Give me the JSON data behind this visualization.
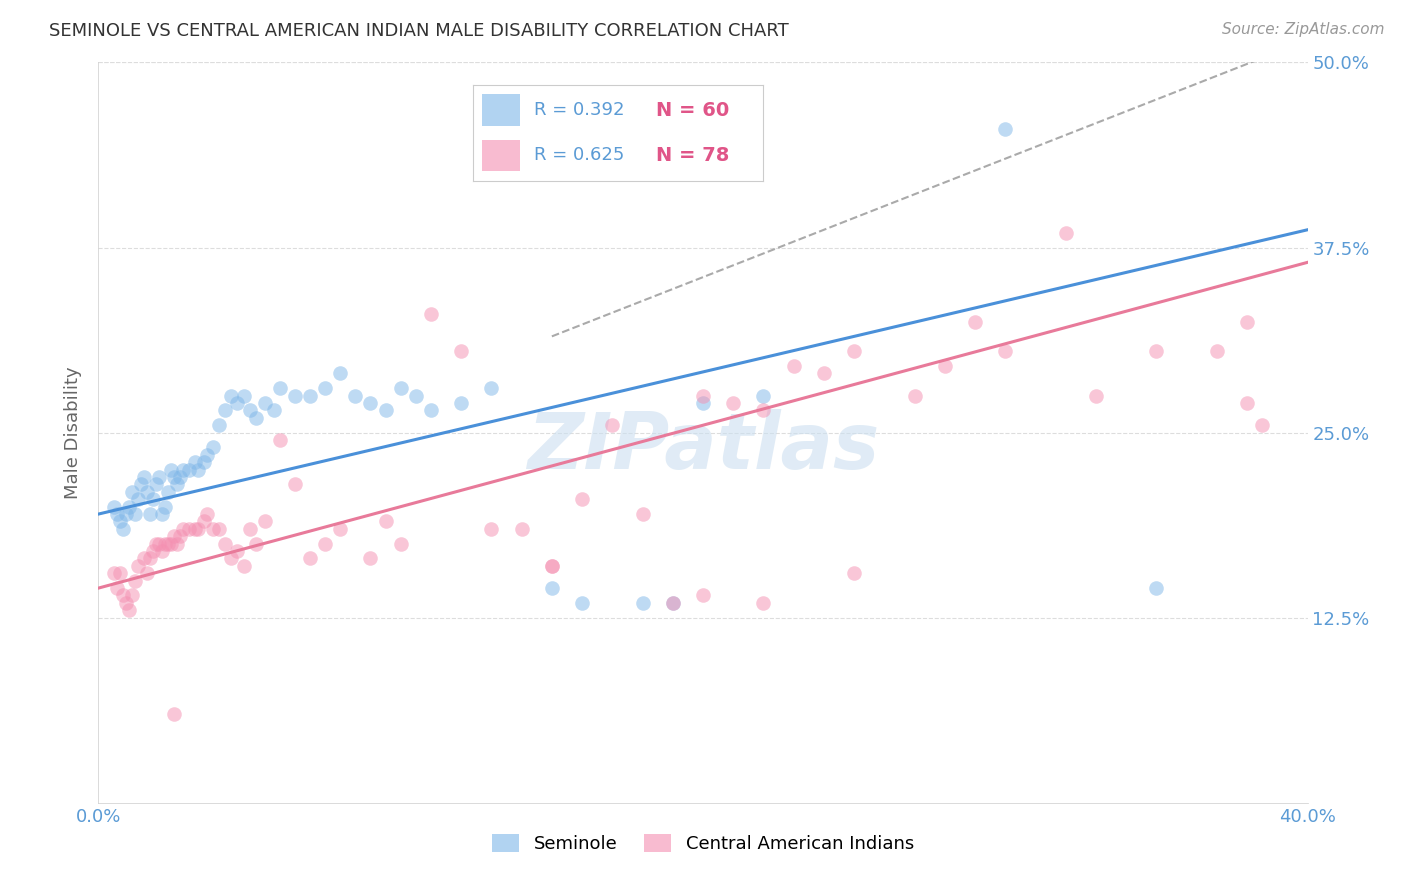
{
  "title": "SEMINOLE VS CENTRAL AMERICAN INDIAN MALE DISABILITY CORRELATION CHART",
  "source": "Source: ZipAtlas.com",
  "ylabel": "Male Disability",
  "xlim": [
    0.0,
    0.4
  ],
  "ylim": [
    0.0,
    0.5
  ],
  "xticks": [
    0.0,
    0.1,
    0.2,
    0.3,
    0.4
  ],
  "xticklabels": [
    "0.0%",
    "",
    "",
    "",
    "40.0%"
  ],
  "yticks": [
    0.0,
    0.125,
    0.25,
    0.375,
    0.5
  ],
  "yticklabels": [
    "",
    "12.5%",
    "25.0%",
    "37.5%",
    "50.0%"
  ],
  "seminole_color": "#7EB6E8",
  "central_color": "#F48FB1",
  "seminole_line_color": "#4A90D9",
  "central_line_color": "#E87A9A",
  "dashed_line_color": "#AAAAAA",
  "seminole_label": "Seminole",
  "central_label": "Central American Indians",
  "watermark": "ZIPatlas",
  "background_color": "#FFFFFF",
  "grid_color": "#DDDDDD",
  "seminole_points": [
    [
      0.005,
      0.2
    ],
    [
      0.006,
      0.195
    ],
    [
      0.007,
      0.19
    ],
    [
      0.008,
      0.185
    ],
    [
      0.009,
      0.195
    ],
    [
      0.01,
      0.2
    ],
    [
      0.011,
      0.21
    ],
    [
      0.012,
      0.195
    ],
    [
      0.013,
      0.205
    ],
    [
      0.014,
      0.215
    ],
    [
      0.015,
      0.22
    ],
    [
      0.016,
      0.21
    ],
    [
      0.017,
      0.195
    ],
    [
      0.018,
      0.205
    ],
    [
      0.019,
      0.215
    ],
    [
      0.02,
      0.22
    ],
    [
      0.021,
      0.195
    ],
    [
      0.022,
      0.2
    ],
    [
      0.023,
      0.21
    ],
    [
      0.024,
      0.225
    ],
    [
      0.025,
      0.22
    ],
    [
      0.026,
      0.215
    ],
    [
      0.027,
      0.22
    ],
    [
      0.028,
      0.225
    ],
    [
      0.03,
      0.225
    ],
    [
      0.032,
      0.23
    ],
    [
      0.033,
      0.225
    ],
    [
      0.035,
      0.23
    ],
    [
      0.036,
      0.235
    ],
    [
      0.038,
      0.24
    ],
    [
      0.04,
      0.255
    ],
    [
      0.042,
      0.265
    ],
    [
      0.044,
      0.275
    ],
    [
      0.046,
      0.27
    ],
    [
      0.048,
      0.275
    ],
    [
      0.05,
      0.265
    ],
    [
      0.052,
      0.26
    ],
    [
      0.055,
      0.27
    ],
    [
      0.058,
      0.265
    ],
    [
      0.06,
      0.28
    ],
    [
      0.065,
      0.275
    ],
    [
      0.07,
      0.275
    ],
    [
      0.075,
      0.28
    ],
    [
      0.08,
      0.29
    ],
    [
      0.085,
      0.275
    ],
    [
      0.09,
      0.27
    ],
    [
      0.095,
      0.265
    ],
    [
      0.1,
      0.28
    ],
    [
      0.105,
      0.275
    ],
    [
      0.11,
      0.265
    ],
    [
      0.12,
      0.27
    ],
    [
      0.13,
      0.28
    ],
    [
      0.15,
      0.145
    ],
    [
      0.16,
      0.135
    ],
    [
      0.18,
      0.135
    ],
    [
      0.19,
      0.135
    ],
    [
      0.2,
      0.27
    ],
    [
      0.22,
      0.275
    ],
    [
      0.3,
      0.455
    ],
    [
      0.35,
      0.145
    ]
  ],
  "central_points": [
    [
      0.005,
      0.155
    ],
    [
      0.006,
      0.145
    ],
    [
      0.007,
      0.155
    ],
    [
      0.008,
      0.14
    ],
    [
      0.009,
      0.135
    ],
    [
      0.01,
      0.13
    ],
    [
      0.011,
      0.14
    ],
    [
      0.012,
      0.15
    ],
    [
      0.013,
      0.16
    ],
    [
      0.015,
      0.165
    ],
    [
      0.016,
      0.155
    ],
    [
      0.017,
      0.165
    ],
    [
      0.018,
      0.17
    ],
    [
      0.019,
      0.175
    ],
    [
      0.02,
      0.175
    ],
    [
      0.021,
      0.17
    ],
    [
      0.022,
      0.175
    ],
    [
      0.023,
      0.175
    ],
    [
      0.024,
      0.175
    ],
    [
      0.025,
      0.18
    ],
    [
      0.026,
      0.175
    ],
    [
      0.027,
      0.18
    ],
    [
      0.028,
      0.185
    ],
    [
      0.03,
      0.185
    ],
    [
      0.032,
      0.185
    ],
    [
      0.033,
      0.185
    ],
    [
      0.035,
      0.19
    ],
    [
      0.036,
      0.195
    ],
    [
      0.038,
      0.185
    ],
    [
      0.04,
      0.185
    ],
    [
      0.042,
      0.175
    ],
    [
      0.044,
      0.165
    ],
    [
      0.046,
      0.17
    ],
    [
      0.048,
      0.16
    ],
    [
      0.05,
      0.185
    ],
    [
      0.052,
      0.175
    ],
    [
      0.055,
      0.19
    ],
    [
      0.06,
      0.245
    ],
    [
      0.065,
      0.215
    ],
    [
      0.07,
      0.165
    ],
    [
      0.075,
      0.175
    ],
    [
      0.08,
      0.185
    ],
    [
      0.09,
      0.165
    ],
    [
      0.095,
      0.19
    ],
    [
      0.1,
      0.175
    ],
    [
      0.11,
      0.33
    ],
    [
      0.12,
      0.305
    ],
    [
      0.13,
      0.185
    ],
    [
      0.14,
      0.185
    ],
    [
      0.15,
      0.16
    ],
    [
      0.16,
      0.205
    ],
    [
      0.17,
      0.255
    ],
    [
      0.18,
      0.195
    ],
    [
      0.2,
      0.275
    ],
    [
      0.21,
      0.27
    ],
    [
      0.22,
      0.265
    ],
    [
      0.23,
      0.295
    ],
    [
      0.24,
      0.29
    ],
    [
      0.25,
      0.305
    ],
    [
      0.27,
      0.275
    ],
    [
      0.28,
      0.295
    ],
    [
      0.29,
      0.325
    ],
    [
      0.3,
      0.305
    ],
    [
      0.32,
      0.385
    ],
    [
      0.33,
      0.275
    ],
    [
      0.35,
      0.305
    ],
    [
      0.37,
      0.305
    ],
    [
      0.38,
      0.325
    ],
    [
      0.385,
      0.255
    ],
    [
      0.025,
      0.06
    ],
    [
      0.38,
      0.27
    ],
    [
      0.19,
      0.135
    ],
    [
      0.2,
      0.14
    ],
    [
      0.22,
      0.135
    ],
    [
      0.25,
      0.155
    ],
    [
      0.15,
      0.16
    ]
  ],
  "seminole_intercept": 0.195,
  "seminole_slope": 0.48,
  "central_intercept": 0.145,
  "central_slope": 0.55,
  "dashed_intercept": 0.195,
  "dashed_slope": 0.8
}
